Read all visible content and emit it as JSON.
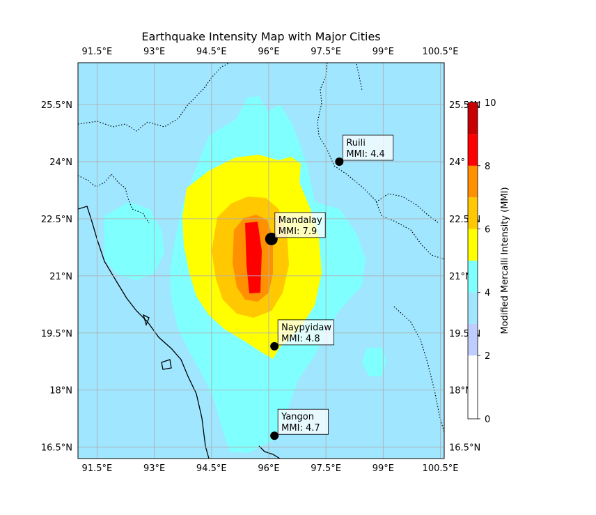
{
  "title": "Earthquake Intensity Map with Major Cities",
  "extent": {
    "lon_min": 91.0,
    "lon_max": 100.6,
    "lat_min": 16.2,
    "lat_max": 26.6
  },
  "lon_ticks": [
    {
      "value": 91.5,
      "label": "91.5°E"
    },
    {
      "value": 93.0,
      "label": "93°E"
    },
    {
      "value": 94.5,
      "label": "94.5°E"
    },
    {
      "value": 96.0,
      "label": "96°E"
    },
    {
      "value": 97.5,
      "label": "97.5°E"
    },
    {
      "value": 99.0,
      "label": "99°E"
    },
    {
      "value": 100.5,
      "label": "100.5°E"
    }
  ],
  "lat_ticks": [
    {
      "value": 16.5,
      "label": "16.5°N",
      "right_label": "16.5°N"
    },
    {
      "value": 18.0,
      "label": "18°N",
      "right_label": "18°N"
    },
    {
      "value": 19.5,
      "label": "19.5°N",
      "right_label": "19.5°N"
    },
    {
      "value": 21.0,
      "label": "21°N",
      "right_label": "21°N"
    },
    {
      "value": 22.5,
      "label": "22.5°N",
      "right_label": "22.5°N"
    },
    {
      "value": 24.0,
      "label": "24°N",
      "right_label": "24°"
    },
    {
      "value": 25.5,
      "label": "25.5°N",
      "right_label": "25.5°N"
    }
  ],
  "cities": [
    {
      "name": "Mandalay",
      "mmi_text": "MMI: 7.9",
      "lon": 96.07,
      "lat": 21.97,
      "mmi": 7.9
    },
    {
      "name": "Ruili",
      "mmi_text": "MMI: 4.4",
      "lon": 97.85,
      "lat": 24.0,
      "mmi": 4.4
    },
    {
      "name": "Naypyidaw",
      "mmi_text": "MMI: 4.8",
      "lon": 96.15,
      "lat": 19.15,
      "mmi": 4.8
    },
    {
      "name": "Yangon",
      "mmi_text": "MMI: 4.7",
      "lon": 96.15,
      "lat": 16.8,
      "mmi": 4.7
    }
  ],
  "colorbar": {
    "label": "Modified Mercalli Intensity (MMI)",
    "min": 0,
    "max": 10,
    "ticks": [
      {
        "value": 0,
        "label": "0"
      },
      {
        "value": 2,
        "label": "2"
      },
      {
        "value": 4,
        "label": "4"
      },
      {
        "value": 6,
        "label": "6"
      },
      {
        "value": 8,
        "label": "8"
      },
      {
        "value": 10,
        "label": "10"
      }
    ],
    "bands": [
      {
        "from": 0,
        "to": 2,
        "color": "#ffffff"
      },
      {
        "from": 2,
        "to": 3,
        "color": "#bfccff"
      },
      {
        "from": 3,
        "to": 4,
        "color": "#a0e6ff"
      },
      {
        "from": 4,
        "to": 5,
        "color": "#80ffff"
      },
      {
        "from": 5,
        "to": 6,
        "color": "#ffff00"
      },
      {
        "from": 6,
        "to": 7,
        "color": "#ffc800"
      },
      {
        "from": 7,
        "to": 8,
        "color": "#ff9100"
      },
      {
        "from": 8,
        "to": 9,
        "color": "#ff0000"
      },
      {
        "from": 9,
        "to": 10,
        "color": "#c80000"
      }
    ]
  }
}
